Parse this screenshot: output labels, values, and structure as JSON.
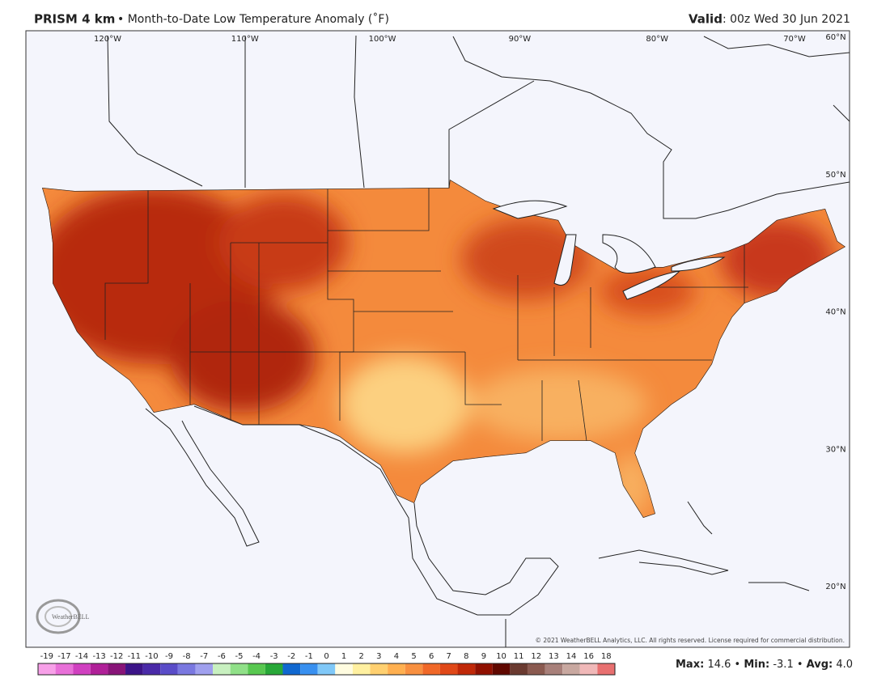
{
  "header": {
    "title": "PRISM 4 km",
    "subtitle": "• Month-to-Date Low Temperature Anomaly (˚F)",
    "valid_label": "Valid",
    "valid_time": ": 00z Wed 30 Jun 2021"
  },
  "map": {
    "longitude_labels": [
      "120°W",
      "110°W",
      "100°W",
      "90°W",
      "80°W",
      "70°W"
    ],
    "latitude_labels": [
      "60°N",
      "50°N",
      "40°N",
      "30°N",
      "20°N"
    ],
    "logo": "WeatherBELL",
    "copyright": "© 2021 WeatherBELL Analytics, LLC. All rights reserved. License required for commercial distribution."
  },
  "colorbar": {
    "labels": [
      -19,
      -17,
      -14,
      -13,
      -12,
      -11,
      -10,
      -9,
      -8,
      -7,
      -6,
      -5,
      -4,
      -3,
      -2,
      -1,
      0,
      1,
      2,
      3,
      4,
      5,
      6,
      7,
      8,
      9,
      10,
      11,
      12,
      13,
      14,
      16,
      18
    ],
    "colors": [
      "#f7a0e8",
      "#e870d8",
      "#d040c0",
      "#b02098",
      "#881478",
      "#3c1488",
      "#4a2aa8",
      "#5a4cc8",
      "#7a78e0",
      "#a0a0ee",
      "#c8f0c0",
      "#90e088",
      "#58c850",
      "#28a838",
      "#1068d0",
      "#3890f0",
      "#80c8f8",
      "#fffce0",
      "#fff0a0",
      "#ffd070",
      "#ffb050",
      "#f89040",
      "#f06828",
      "#e04818",
      "#c02808",
      "#901000",
      "#600800",
      "#6a3a30",
      "#8a5a50",
      "#a8807a",
      "#c8a8a0",
      "#f0b8b8",
      "#e87070"
    ]
  },
  "stats": [
    {
      "name": "Max:",
      "value": 14.6
    },
    {
      "name": "Min:",
      "value": -3.1
    },
    {
      "name": "Avg:",
      "value": 4,
      "value_label": "4.0"
    }
  ],
  "separator": "•"
}
